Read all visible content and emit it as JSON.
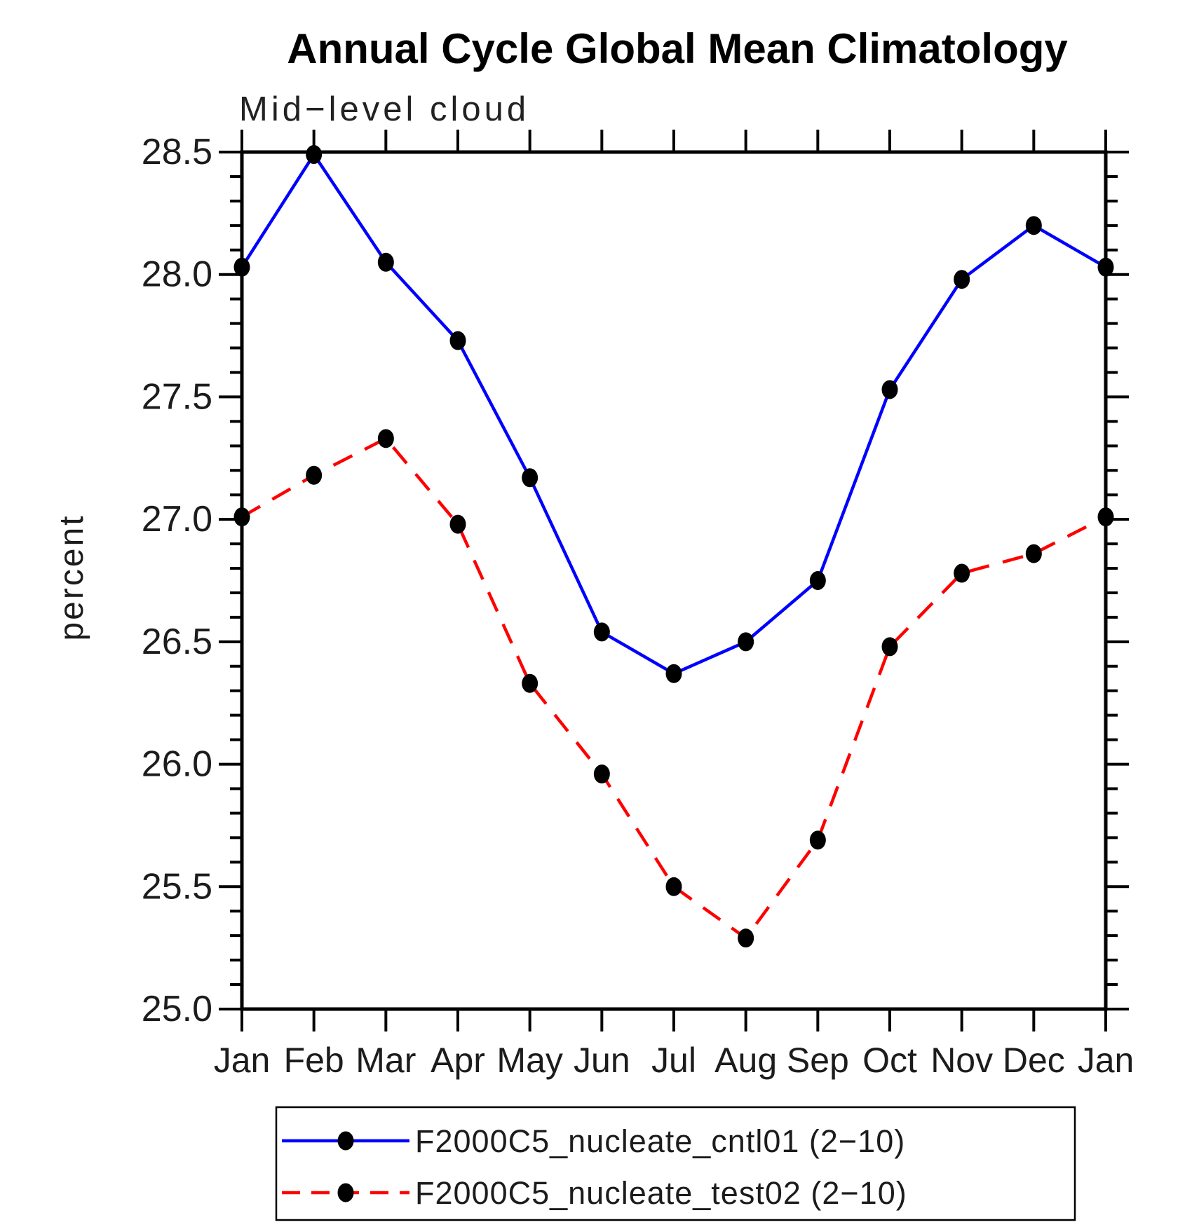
{
  "chart_data": {
    "type": "line",
    "title": "Annual Cycle Global Mean Climatology",
    "subtitle": "Mid−level cloud",
    "ylabel": "percent",
    "categories": [
      "Jan",
      "Feb",
      "Mar",
      "Apr",
      "May",
      "Jun",
      "Jul",
      "Aug",
      "Sep",
      "Oct",
      "Nov",
      "Dec",
      "Jan"
    ],
    "ylim": [
      25.0,
      28.5
    ],
    "ytick_major": 0.5,
    "ytick_minor": 0.1,
    "ytick_labels": [
      "25.0",
      "25.5",
      "26.0",
      "26.5",
      "27.0",
      "27.5",
      "28.0",
      "28.5"
    ],
    "grid": false,
    "legend_position": "bottom-center",
    "marker_color": "#000000",
    "axis_color": "#000000",
    "series": [
      {
        "name": "F2000C5_nucleate_cntl01 (2−10)",
        "color": "#0000ff",
        "line_style": "solid",
        "marker": "filled-circle",
        "values": [
          28.03,
          28.49,
          28.05,
          27.73,
          27.17,
          26.54,
          26.37,
          26.5,
          26.75,
          27.53,
          27.98,
          28.2,
          28.03
        ]
      },
      {
        "name": "F2000C5_nucleate_test02 (2−10)",
        "color": "#ff0000",
        "line_style": "dashed",
        "marker": "filled-circle",
        "values": [
          27.01,
          27.18,
          27.33,
          26.98,
          26.33,
          25.96,
          25.5,
          25.29,
          25.69,
          26.48,
          26.78,
          26.86,
          27.01
        ]
      }
    ]
  }
}
